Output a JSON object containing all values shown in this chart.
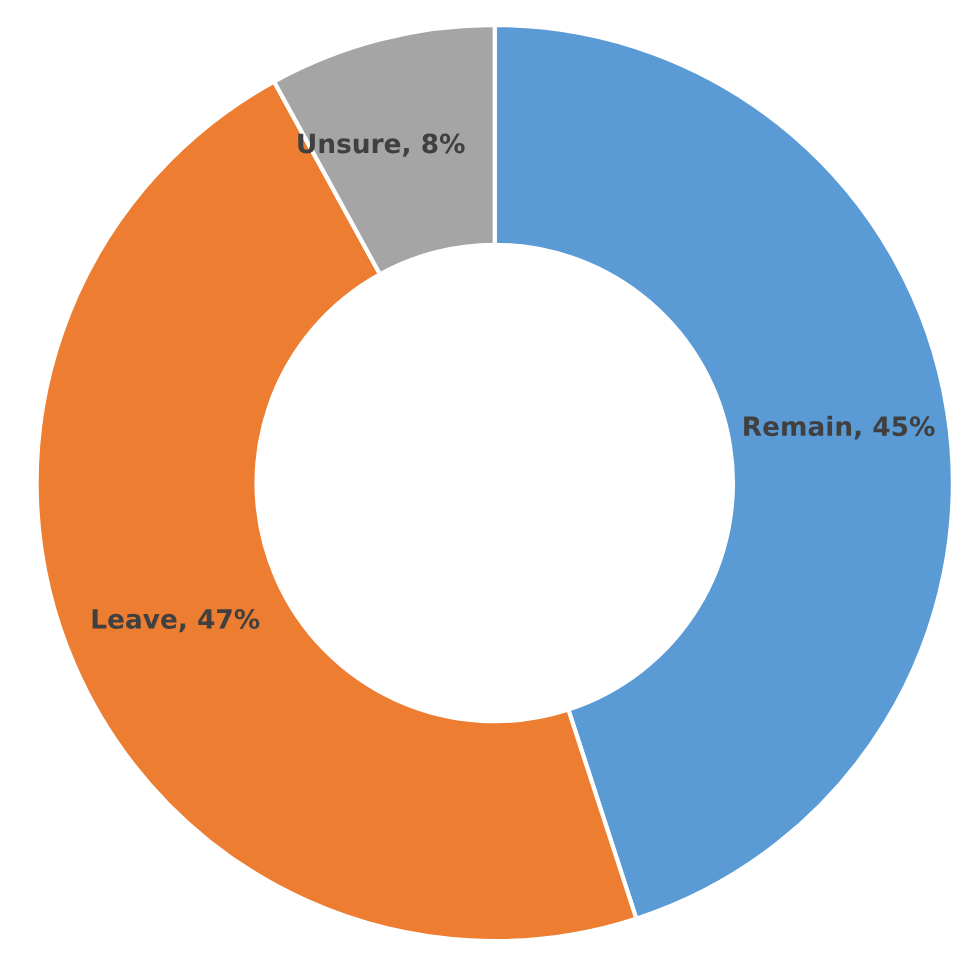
{
  "chart_data": {
    "type": "donut",
    "categories": [
      "Remain",
      "Leave",
      "Unsure"
    ],
    "values": [
      45,
      47,
      8
    ],
    "colors": [
      "#5b9bd5",
      "#ed7d31",
      "#a5a5a5"
    ],
    "value_labels": [
      "45%",
      "47%",
      "8%"
    ],
    "legend": false
  }
}
